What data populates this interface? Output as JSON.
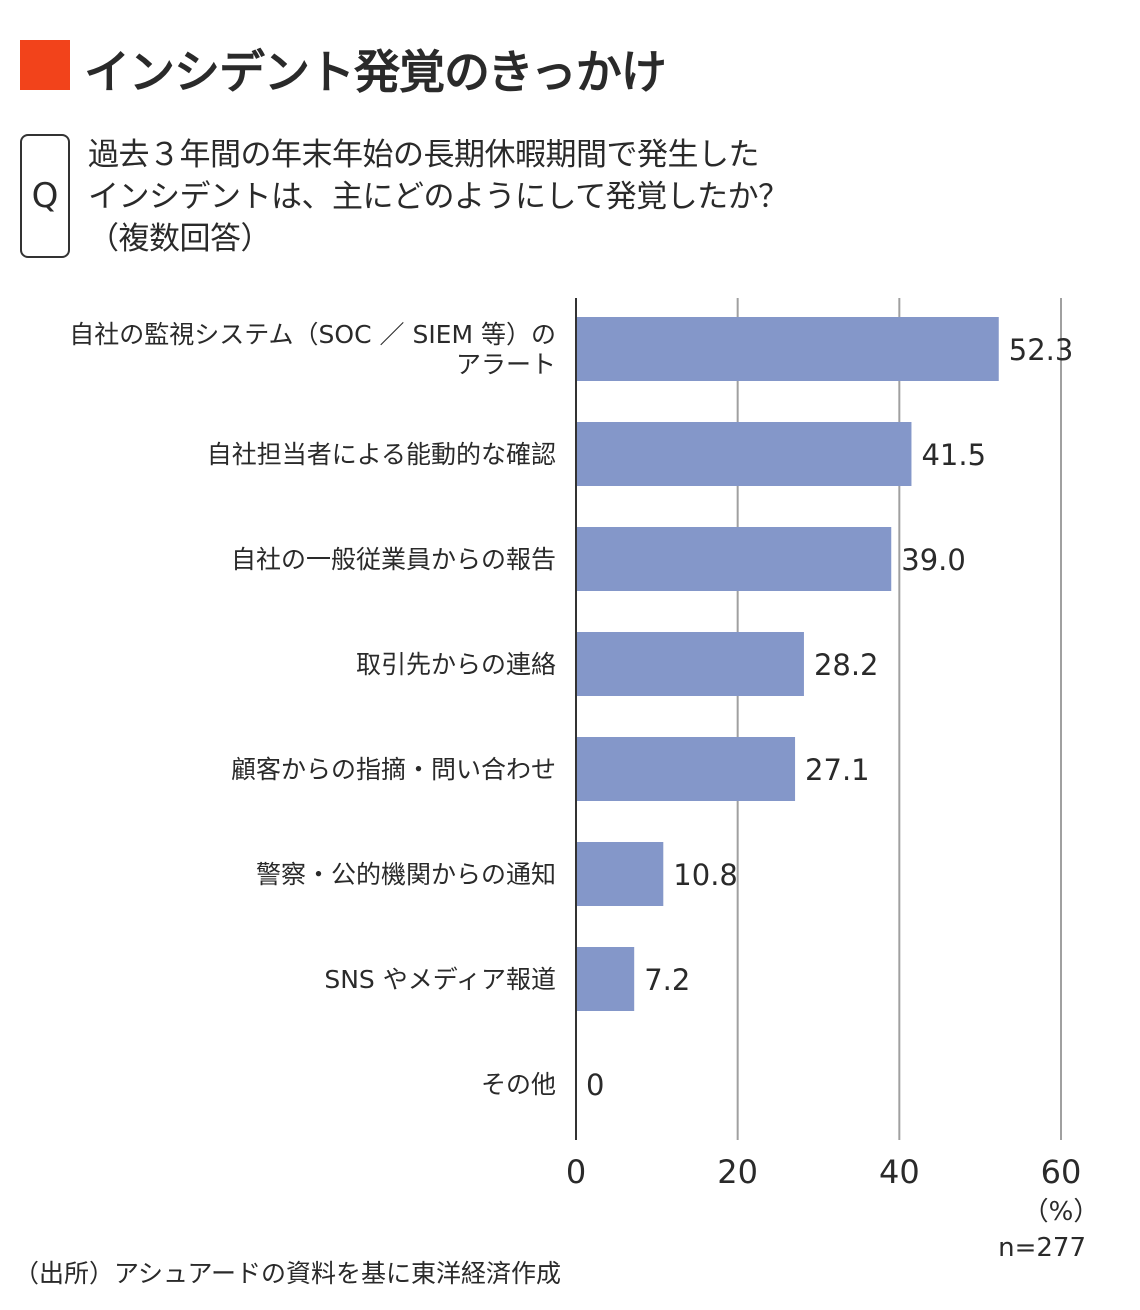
{
  "title": "インシデント発覚のきっかけ",
  "colors": {
    "title_mark": "#F2431B",
    "bar": "#8497C9",
    "grid": "#A0A0A0",
    "axis": "#333333"
  },
  "question": {
    "label": "Q",
    "text": "過去３年間の年末年始の長期休暇期間で発生した\nインシデントは、主にどのようにして発覚したか？\n（複数回答）"
  },
  "chart_data": {
    "type": "bar",
    "orientation": "horizontal",
    "categories": [
      [
        "自社の監視システム（SOC ／ SIEM 等）の",
        "アラート"
      ],
      [
        "自社担当者による能動的な確認"
      ],
      [
        "自社の一般従業員からの報告"
      ],
      [
        "取引先からの連絡"
      ],
      [
        "顧客からの指摘・問い合わせ"
      ],
      [
        "警察・公的機関からの通知"
      ],
      [
        "SNS やメディア報道"
      ],
      [
        "その他"
      ]
    ],
    "values": [
      52.3,
      41.5,
      39.0,
      28.2,
      27.1,
      10.8,
      7.2,
      0
    ],
    "value_labels": [
      "52.3",
      "41.5",
      "39.0",
      "28.2",
      "27.1",
      "10.8",
      "7.2",
      "0"
    ],
    "xlim": [
      0,
      60
    ],
    "xticks": [
      0,
      20,
      40,
      60
    ],
    "grid": true,
    "unit": "（%）",
    "n_label": "n=277"
  },
  "source": "（出所）アシュアードの資料を基に東洋経済作成"
}
